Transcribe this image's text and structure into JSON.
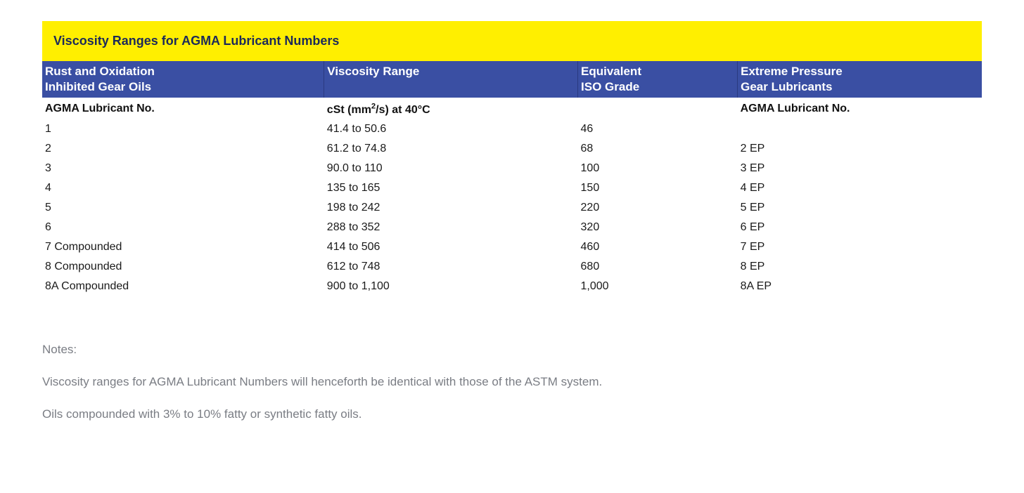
{
  "title": "Viscosity Ranges for AGMA Lubricant Numbers",
  "colors": {
    "title_bg": "#ffef00",
    "title_text": "#1c2a5a",
    "header_bg": "#3a4fa3",
    "header_text": "#ffffff",
    "body_text": "#1a1a1a",
    "notes_text": "#7a7d84"
  },
  "columns": [
    {
      "header_l1": "Rust and Oxidation",
      "header_l2": "Inhibited Gear Oils",
      "sub": "AGMA Lubricant No.",
      "width": "30%"
    },
    {
      "header_l1": "Viscosity Range",
      "header_l2": "",
      "sub_html": "cSt (mm<sup>2</sup>/s) at 40°C",
      "width": "27%"
    },
    {
      "header_l1": "Equivalent",
      "header_l2": "ISO Grade",
      "sub": "",
      "width": "17%"
    },
    {
      "header_l1": "Extreme Pressure",
      "header_l2": "Gear Lubricants",
      "sub": "AGMA Lubricant No.",
      "width": "26%"
    }
  ],
  "rows": [
    {
      "c0": "1",
      "c1": "41.4 to 50.6",
      "c2": "46",
      "c3": ""
    },
    {
      "c0": "2",
      "c1": "61.2 to 74.8",
      "c2": "68",
      "c3": "2 EP"
    },
    {
      "c0": "3",
      "c1": "90.0 to 110",
      "c2": "100",
      "c3": "3 EP"
    },
    {
      "c0": "4",
      "c1": "135 to 165",
      "c2": "150",
      "c3": "4 EP"
    },
    {
      "c0": "5",
      "c1": "198 to 242",
      "c2": "220",
      "c3": "5 EP"
    },
    {
      "c0": "6",
      "c1": "288 to 352",
      "c2": "320",
      "c3": "6 EP"
    },
    {
      "c0": "7 Compounded",
      "c1": "414 to 506",
      "c2": "460",
      "c3": "7 EP"
    },
    {
      "c0": "8 Compounded",
      "c1": "612 to 748",
      "c2": "680",
      "c3": "8 EP"
    },
    {
      "c0": "8A Compounded",
      "c1": "900 to 1,100",
      "c2": "1,000",
      "c3": "8A EP"
    }
  ],
  "notes": {
    "heading": "Notes:",
    "line1": "Viscosity ranges for AGMA Lubricant Numbers will henceforth be identical with those of the ASTM system.",
    "line2": "Oils compounded with 3% to 10% fatty or synthetic fatty oils."
  }
}
